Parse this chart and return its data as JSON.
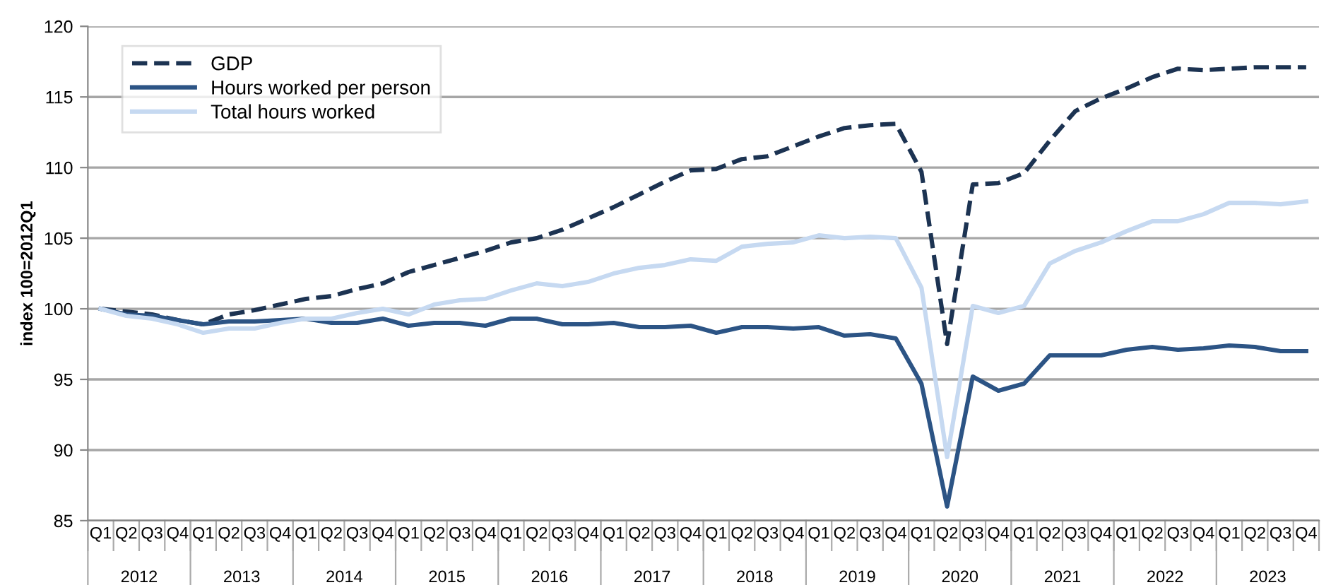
{
  "chart_data": {
    "type": "line",
    "ylabel": "index 100=2012Q1",
    "categories": [
      "Q1",
      "Q2",
      "Q3",
      "Q4",
      "Q1",
      "Q2",
      "Q3",
      "Q4",
      "Q1",
      "Q2",
      "Q3",
      "Q4",
      "Q1",
      "Q2",
      "Q3",
      "Q4",
      "Q1",
      "Q2",
      "Q3",
      "Q4",
      "Q1",
      "Q2",
      "Q3",
      "Q4",
      "Q1",
      "Q2",
      "Q3",
      "Q4",
      "Q1",
      "Q2",
      "Q3",
      "Q4",
      "Q1",
      "Q2",
      "Q3",
      "Q4",
      "Q1",
      "Q2",
      "Q3",
      "Q4",
      "Q1",
      "Q2",
      "Q3",
      "Q4",
      "Q1",
      "Q2",
      "Q3",
      "Q4"
    ],
    "annotations": [
      "2012",
      "2013",
      "2014",
      "2015",
      "2016",
      "2017",
      "2018",
      "2019",
      "2020",
      "2021",
      "2022",
      "2023"
    ],
    "series": [
      {
        "name": "GDP",
        "color": "#1c3352",
        "line_style": "dashed",
        "values": [
          100,
          99.8,
          99.6,
          99.2,
          98.9,
          99.6,
          99.9,
          100.3,
          100.7,
          100.9,
          101.4,
          101.8,
          102.6,
          103.1,
          103.6,
          104.1,
          104.7,
          105.0,
          105.6,
          106.4,
          107.2,
          108.1,
          109.0,
          109.8,
          109.9,
          110.6,
          110.8,
          111.5,
          112.2,
          112.8,
          113.0,
          113.1,
          109.7,
          97.5,
          108.8,
          108.9,
          109.6,
          111.9,
          114.0,
          114.9,
          115.6,
          116.4,
          117.0,
          116.9,
          117.0,
          117.1,
          117.1,
          117.1
        ]
      },
      {
        "name": "Hours worked per person",
        "color": "#2c5485",
        "line_style": "solid",
        "values": [
          100,
          99.6,
          99.5,
          99.2,
          98.9,
          99.1,
          99.1,
          99.2,
          99.3,
          99.0,
          99.0,
          99.3,
          98.8,
          99.0,
          99.0,
          98.8,
          99.3,
          99.3,
          98.9,
          98.9,
          99.0,
          98.7,
          98.7,
          98.8,
          98.3,
          98.7,
          98.7,
          98.6,
          98.7,
          98.1,
          98.2,
          97.9,
          94.7,
          86.0,
          95.2,
          94.2,
          94.7,
          96.7,
          96.7,
          96.7,
          97.1,
          97.3,
          97.1,
          97.2,
          97.4,
          97.3,
          97.0,
          97.0
        ]
      },
      {
        "name": "Total hours worked",
        "color": "#c6d9f1",
        "line_style": "solid",
        "values": [
          100,
          99.5,
          99.3,
          98.9,
          98.3,
          98.6,
          98.6,
          99.0,
          99.3,
          99.3,
          99.7,
          100.0,
          99.6,
          100.3,
          100.6,
          100.7,
          101.3,
          101.8,
          101.6,
          101.9,
          102.5,
          102.9,
          103.1,
          103.5,
          103.4,
          104.4,
          104.6,
          104.7,
          105.2,
          105.0,
          105.1,
          105.0,
          101.5,
          89.5,
          100.2,
          99.7,
          100.2,
          103.2,
          104.1,
          104.7,
          105.5,
          106.2,
          106.2,
          106.7,
          107.5,
          107.5,
          107.4,
          107.6
        ]
      }
    ],
    "ylim": [
      85,
      120
    ],
    "yticks": [
      85,
      90,
      95,
      100,
      105,
      110,
      115,
      120
    ],
    "grid": "y",
    "legend": "top left"
  }
}
